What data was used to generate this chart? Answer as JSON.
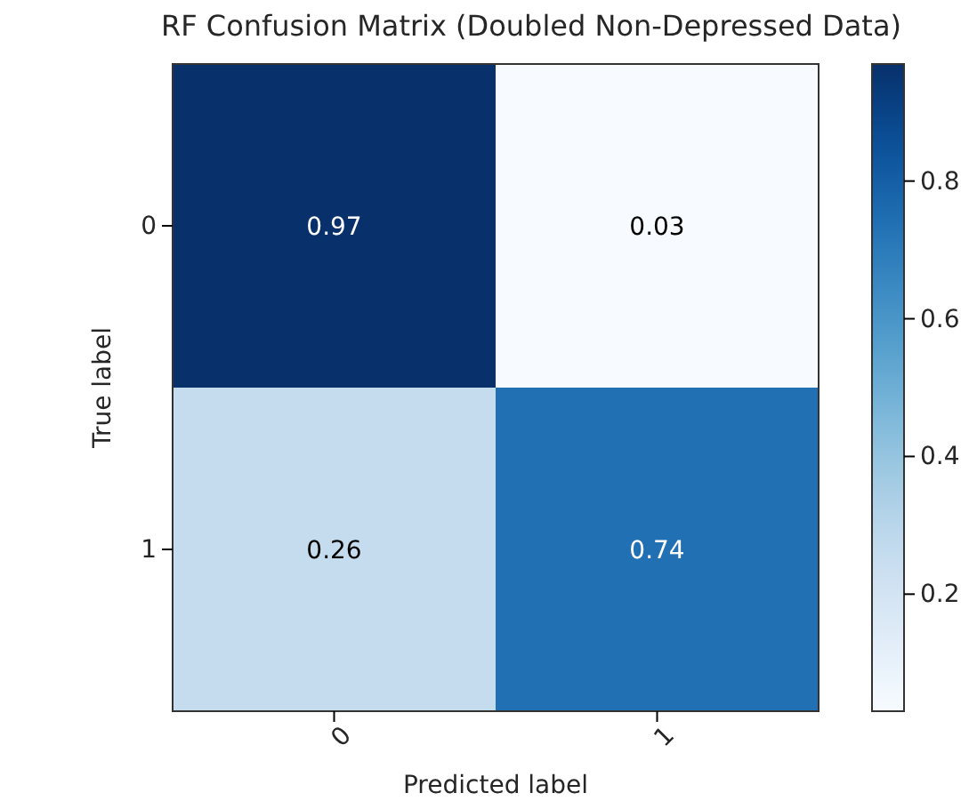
{
  "chart_data": {
    "type": "heatmap",
    "title": "RF Confusion Matrix (Doubled Non-Depressed Data)",
    "xlabel": "Predicted label",
    "ylabel": "True label",
    "categories": [
      "0",
      "1"
    ],
    "y_categories": [
      "0",
      "1"
    ],
    "cells": [
      [
        0.97,
        0.03
      ],
      [
        0.26,
        0.74
      ]
    ],
    "data_labels": true,
    "clim": [
      0.03,
      0.97
    ],
    "cticks": [
      0.2,
      0.4,
      0.6,
      0.8
    ]
  }
}
